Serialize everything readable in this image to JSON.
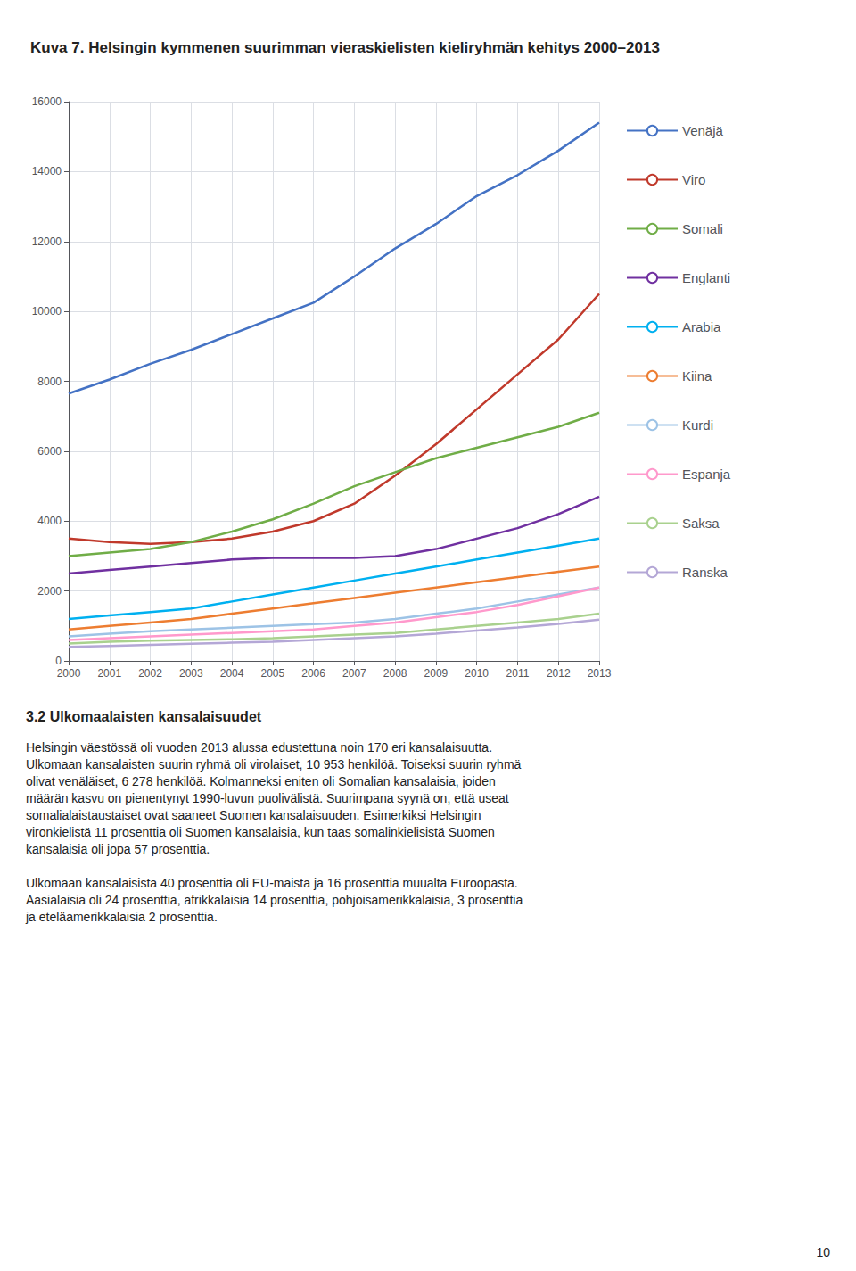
{
  "chart_data": {
    "type": "line",
    "title": "Kuva 7. Helsingin kymmenen suurimman vieraskielisten kieliryhmän kehitys 2000–2013",
    "x": [
      2000,
      2001,
      2002,
      2003,
      2004,
      2005,
      2006,
      2007,
      2008,
      2009,
      2010,
      2011,
      2012,
      2013
    ],
    "series": [
      {
        "name": "Venäjä",
        "color": "#4472C4",
        "values": [
          7650,
          8050,
          8500,
          8900,
          9350,
          9800,
          10250,
          11000,
          11800,
          12500,
          13300,
          13900,
          14600,
          15400
        ]
      },
      {
        "name": "Viro",
        "color": "#C0392B",
        "values": [
          3500,
          3400,
          3350,
          3400,
          3500,
          3700,
          4000,
          4500,
          5300,
          6200,
          7200,
          8200,
          9200,
          10500
        ]
      },
      {
        "name": "Somali",
        "color": "#70AD47",
        "values": [
          3000,
          3100,
          3200,
          3400,
          3700,
          4050,
          4500,
          5000,
          5400,
          5800,
          6100,
          6400,
          6700,
          7100
        ]
      },
      {
        "name": "Englanti",
        "color": "#7030A0",
        "values": [
          2500,
          2600,
          2700,
          2800,
          2900,
          2950,
          2950,
          2950,
          3000,
          3200,
          3500,
          3800,
          4200,
          4700
        ]
      },
      {
        "name": "Arabia",
        "color": "#00B0F0",
        "values": [
          1200,
          1300,
          1400,
          1500,
          1700,
          1900,
          2100,
          2300,
          2500,
          2700,
          2900,
          3100,
          3300,
          3500
        ]
      },
      {
        "name": "Kiina",
        "color": "#ED7D31",
        "values": [
          900,
          1000,
          1100,
          1200,
          1350,
          1500,
          1650,
          1800,
          1950,
          2100,
          2250,
          2400,
          2550,
          2700
        ]
      },
      {
        "name": "Kurdi",
        "color": "#9DC3E6",
        "values": [
          700,
          780,
          850,
          900,
          950,
          1000,
          1050,
          1100,
          1200,
          1350,
          1500,
          1700,
          1900,
          2100
        ]
      },
      {
        "name": "Espanja",
        "color": "#FF99CC",
        "values": [
          600,
          650,
          700,
          750,
          800,
          850,
          900,
          1000,
          1100,
          1250,
          1400,
          1600,
          1850,
          2100
        ]
      },
      {
        "name": "Saksa",
        "color": "#A9D18E",
        "values": [
          500,
          550,
          580,
          600,
          620,
          650,
          700,
          750,
          800,
          900,
          1000,
          1100,
          1200,
          1350
        ]
      },
      {
        "name": "Ranska",
        "color": "#B4A7D6",
        "values": [
          400,
          430,
          460,
          490,
          520,
          550,
          600,
          650,
          700,
          780,
          870,
          960,
          1060,
          1180
        ]
      }
    ],
    "xlim": [
      2000,
      2013
    ],
    "xticks": [
      2000,
      2001,
      2002,
      2003,
      2004,
      2005,
      2006,
      2007,
      2008,
      2009,
      2010,
      2011,
      2012,
      2013
    ],
    "ylim": [
      0,
      16000
    ],
    "yticks": [
      0,
      2000,
      4000,
      6000,
      8000,
      10000,
      12000,
      14000,
      16000
    ],
    "grid": true,
    "legend": "right",
    "annotations": [
      "3.2 Ulkomaalaisten kansalaisuudet",
      [
        "Helsingin väestössä oli vuoden 2013 alussa edustettuna noin 170 eri kansalaisuutta.",
        "Ulkomaan kansalaisten suurin ryhmä oli virolaiset, 10 953 henkilöä. Toiseksi suurin ryhmä",
        "olivat venäläiset, 6 278 henkilöä. Kolmanneksi eniten oli Somalian kansalaisia, joiden",
        "määrän kasvu on pienentynyt 1990-luvun puolivälistä. Suurimpana syynä on, että useat",
        "somalialaistaustaiset ovat saaneet Suomen kansalaisuuden. Esimerkiksi Helsingin",
        "vironkielistä 11 prosenttia oli Suomen kansalaisia, kun taas somalinkielisistä Suomen",
        "kansalaisia oli jopa 57 prosenttia."
      ],
      [
        "Ulkomaan kansalaisista 40 prosenttia oli EU-maista ja 16 prosenttia muualta Euroopasta.",
        "Aasialaisia oli 24 prosenttia, afrikkalaisia 14 prosenttia, pohjoisamerikkalaisia, 3 prosenttia",
        "ja eteläamerikkalaisia 2 prosenttia."
      ],
      "10"
    ]
  }
}
